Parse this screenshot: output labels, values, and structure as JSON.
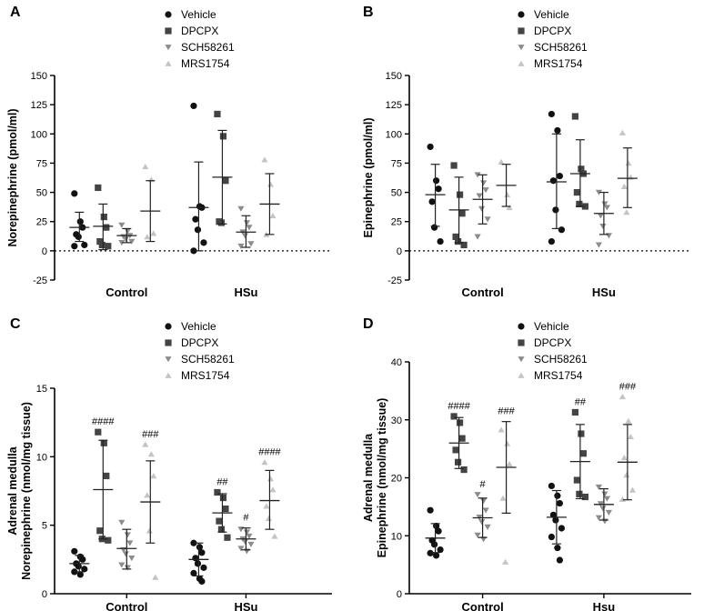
{
  "colors": {
    "vehicle": "#111111",
    "dpcpx": "#444444",
    "sch58261": "#8c8c8c",
    "mrs1754": "#c4c4c4",
    "axis": "#000000"
  },
  "legend": {
    "entries": [
      {
        "label": "Vehicle",
        "marker": "circle",
        "color_key": "vehicle"
      },
      {
        "label": "DPCPX",
        "marker": "square",
        "color_key": "dpcpx"
      },
      {
        "label": "SCH58261",
        "marker": "triangle-down",
        "color_key": "sch58261"
      },
      {
        "label": "MRS1754",
        "marker": "triangle-up",
        "color_key": "mrs1754"
      }
    ]
  },
  "chart_data": [
    {
      "panel": "A",
      "type": "scatter",
      "ylabel": "Norepinephrine (pmol/ml)",
      "ylim": [
        -25,
        150
      ],
      "yticks": [
        "-25",
        "0",
        "25",
        "50",
        "75",
        "100",
        "125",
        "150"
      ],
      "zero_line": true,
      "groups": [
        "Control",
        "HSu"
      ],
      "series": [
        {
          "name": "Vehicle",
          "groups": [
            {
              "mean": 20,
              "sd_low": 8,
              "sd_high": 33,
              "points": [
                49,
                25,
                20,
                14,
                12,
                5,
                4
              ],
              "sig": ""
            },
            {
              "mean": 37,
              "sd_low": 0,
              "sd_high": 76,
              "points": [
                124,
                38,
                37,
                27,
                18,
                7,
                0
              ],
              "sig": ""
            }
          ]
        },
        {
          "name": "DPCPX",
          "groups": [
            {
              "mean": 21,
              "sd_low": 1,
              "sd_high": 40,
              "points": [
                54,
                29,
                20,
                8,
                5,
                4
              ],
              "sig": ""
            },
            {
              "mean": 63,
              "sd_low": 23,
              "sd_high": 103,
              "points": [
                117,
                98,
                60,
                25,
                24
              ],
              "sig": ""
            }
          ]
        },
        {
          "name": "SCH58261",
          "groups": [
            {
              "mean": 13,
              "sd_low": 7,
              "sd_high": 19,
              "points": [
                22,
                17,
                13,
                12,
                10,
                8,
                7
              ],
              "sig": ""
            },
            {
              "mean": 16,
              "sd_low": 3,
              "sd_high": 30,
              "points": [
                36,
                24,
                20,
                16,
                13,
                6,
                4
              ],
              "sig": ""
            }
          ]
        },
        {
          "name": "MRS1754",
          "groups": [
            {
              "mean": 34,
              "sd_low": 8,
              "sd_high": 60,
              "points": [
                72,
                61,
                15,
                12
              ],
              "sig": ""
            },
            {
              "mean": 40,
              "sd_low": 14,
              "sd_high": 66,
              "points": [
                78,
                57,
                30,
                14
              ],
              "sig": ""
            }
          ]
        }
      ]
    },
    {
      "panel": "B",
      "type": "scatter",
      "ylabel": "Epinephrine (pmol/ml)",
      "ylim": [
        -25,
        150
      ],
      "yticks": [
        "-25",
        "0",
        "25",
        "50",
        "75",
        "100",
        "125",
        "150"
      ],
      "zero_line": true,
      "groups": [
        "Control",
        "HSu"
      ],
      "series": [
        {
          "name": "Vehicle",
          "groups": [
            {
              "mean": 48,
              "sd_low": 21,
              "sd_high": 74,
              "points": [
                89,
                60,
                53,
                42,
                20,
                8
              ],
              "sig": ""
            },
            {
              "mean": 59,
              "sd_low": 19,
              "sd_high": 100,
              "points": [
                117,
                103,
                64,
                60,
                35,
                18,
                8
              ],
              "sig": ""
            }
          ]
        },
        {
          "name": "DPCPX",
          "groups": [
            {
              "mean": 35,
              "sd_low": 7,
              "sd_high": 63,
              "points": [
                73,
                48,
                32,
                12,
                8,
                5
              ],
              "sig": ""
            },
            {
              "mean": 66,
              "sd_low": 38,
              "sd_high": 95,
              "points": [
                115,
                70,
                66,
                50,
                40,
                38
              ],
              "sig": ""
            }
          ]
        },
        {
          "name": "SCH58261",
          "groups": [
            {
              "mean": 44,
              "sd_low": 23,
              "sd_high": 65,
              "points": [
                65,
                58,
                52,
                47,
                36,
                27,
                12
              ],
              "sig": ""
            },
            {
              "mean": 32,
              "sd_low": 14,
              "sd_high": 50,
              "points": [
                50,
                40,
                37,
                30,
                21,
                13,
                5
              ],
              "sig": ""
            }
          ]
        },
        {
          "name": "MRS1754",
          "groups": [
            {
              "mean": 56,
              "sd_low": 38,
              "sd_high": 74,
              "points": [
                76,
                48,
                37
              ],
              "sig": ""
            },
            {
              "mean": 62,
              "sd_low": 37,
              "sd_high": 88,
              "points": [
                101,
                75,
                63,
                55,
                33
              ],
              "sig": ""
            }
          ]
        }
      ]
    },
    {
      "panel": "C",
      "type": "scatter",
      "ylabel": "Adrenal medulla\nNorepinephrine (nmol/mg tissue)",
      "ylim": [
        0,
        15
      ],
      "yticks": [
        "0",
        "5",
        "10",
        "15"
      ],
      "zero_line": false,
      "groups": [
        "Control",
        "HSu"
      ],
      "series": [
        {
          "name": "Vehicle",
          "groups": [
            {
              "mean": 2.2,
              "sd_low": 1.6,
              "sd_high": 2.8,
              "points": [
                3.1,
                2.7,
                2.5,
                2.2,
                2.0,
                1.8,
                1.6,
                1.4
              ],
              "sig": ""
            },
            {
              "mean": 2.5,
              "sd_low": 1.3,
              "sd_high": 3.7,
              "points": [
                3.7,
                3.4,
                3.0,
                2.6,
                2.2,
                1.9,
                1.5,
                1.1,
                0.9
              ],
              "sig": ""
            }
          ]
        },
        {
          "name": "DPCPX",
          "groups": [
            {
              "mean": 7.6,
              "sd_low": 4.0,
              "sd_high": 11.2,
              "points": [
                11.8,
                11.0,
                8.6,
                4.6,
                4.0,
                3.9
              ],
              "sig": "####"
            },
            {
              "mean": 5.9,
              "sd_low": 4.5,
              "sd_high": 7.3,
              "points": [
                7.4,
                7.0,
                6.2,
                5.3,
                4.7,
                4.1
              ],
              "sig": "##"
            }
          ]
        },
        {
          "name": "SCH58261",
          "groups": [
            {
              "mean": 3.3,
              "sd_low": 1.8,
              "sd_high": 4.7,
              "points": [
                5.2,
                4.3,
                3.7,
                3.2,
                2.9,
                2.6,
                2.1,
                1.9
              ],
              "sig": ""
            },
            {
              "mean": 4.0,
              "sd_low": 3.2,
              "sd_high": 4.8,
              "points": [
                4.7,
                4.5,
                4.2,
                4.0,
                3.8,
                3.6,
                3.3,
                3.1
              ],
              "sig": "#"
            }
          ]
        },
        {
          "name": "MRS1754",
          "groups": [
            {
              "mean": 6.7,
              "sd_low": 3.7,
              "sd_high": 9.7,
              "points": [
                10.9,
                10.2,
                8.6,
                7.2,
                4.6,
                1.2
              ],
              "sig": "###"
            },
            {
              "mean": 6.8,
              "sd_low": 4.7,
              "sd_high": 9.0,
              "points": [
                9.6,
                8.4,
                7.6,
                6.4,
                5.5,
                4.2
              ],
              "sig": "####"
            }
          ]
        }
      ]
    },
    {
      "panel": "D",
      "type": "scatter",
      "ylabel": "Adrenal medulla\nEpinephrine (nmol/mg tissue)",
      "ylim": [
        0,
        40
      ],
      "yticks": [
        "0",
        "10",
        "20",
        "30",
        "40"
      ],
      "zero_line": false,
      "groups": [
        "Control",
        "Hsu"
      ],
      "series": [
        {
          "name": "Vehicle",
          "groups": [
            {
              "mean": 9.6,
              "sd_low": 7.1,
              "sd_high": 12.1,
              "points": [
                14.4,
                11.7,
                10.8,
                9.2,
                8.5,
                7.6,
                7.0,
                6.6
              ],
              "sig": ""
            },
            {
              "mean": 13.2,
              "sd_low": 8.6,
              "sd_high": 17.8,
              "points": [
                18.6,
                16.9,
                15.6,
                13.6,
                12.7,
                11.3,
                9.8,
                7.9,
                5.8
              ],
              "sig": ""
            }
          ]
        },
        {
          "name": "DPCPX",
          "groups": [
            {
              "mean": 26.0,
              "sd_low": 21.6,
              "sd_high": 30.4,
              "points": [
                30.6,
                29.5,
                26.8,
                24.8,
                22.7,
                21.4
              ],
              "sig": "####"
            },
            {
              "mean": 22.8,
              "sd_low": 16.4,
              "sd_high": 29.2,
              "points": [
                31.3,
                27.6,
                24.2,
                19.6,
                17.2,
                16.7
              ],
              "sig": "##"
            }
          ]
        },
        {
          "name": "SCH58261",
          "groups": [
            {
              "mean": 13.1,
              "sd_low": 9.7,
              "sd_high": 16.5,
              "points": [
                17.1,
                16.0,
                14.4,
                13.2,
                12.4,
                11.5,
                10.1,
                9.4
              ],
              "sig": "#"
            },
            {
              "mean": 15.4,
              "sd_low": 12.7,
              "sd_high": 18.1,
              "points": [
                18.4,
                17.2,
                16.4,
                15.5,
                14.7,
                14.0,
                13.1,
                12.5
              ],
              "sig": ""
            }
          ]
        },
        {
          "name": "MRS1754",
          "groups": [
            {
              "mean": 21.8,
              "sd_low": 13.9,
              "sd_high": 29.7,
              "points": [
                28.3,
                25.9,
                22.4,
                16.5,
                5.5
              ],
              "sig": "###"
            },
            {
              "mean": 22.7,
              "sd_low": 16.2,
              "sd_high": 29.2,
              "points": [
                34.0,
                29.8,
                27.1,
                23.5,
                20.5,
                17.9,
                16.3
              ],
              "sig": "###"
            }
          ]
        }
      ]
    }
  ]
}
